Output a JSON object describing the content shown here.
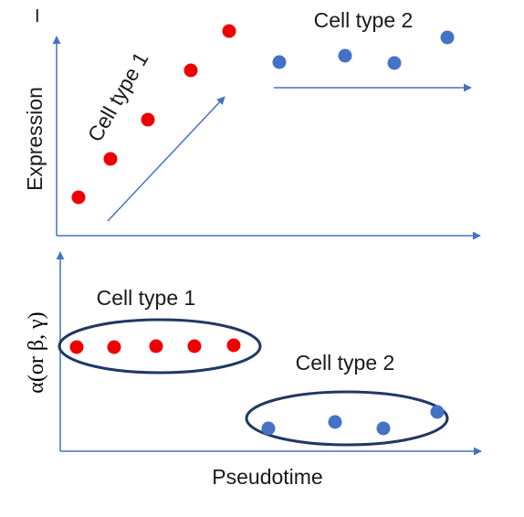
{
  "top_panel": {
    "ylabel": "Expression",
    "label_type1": "Cell type 1",
    "label_type2": "Cell type 2",
    "mark": "I"
  },
  "bottom_panel": {
    "ylabel_alpha": "α",
    "ylabel_or": "(or ",
    "ylabel_beta": "β",
    "ylabel_sep": ", ",
    "ylabel_gamma": "γ",
    "ylabel_close": ")",
    "label_type1": "Cell type 1",
    "label_type2": "Cell type 2",
    "xlabel": "Pseudotime"
  },
  "colors": {
    "axis": "#4472c4",
    "type1_dots": "#ee0000",
    "type2_dots": "#4472c4",
    "ellipse": "#203864"
  }
}
